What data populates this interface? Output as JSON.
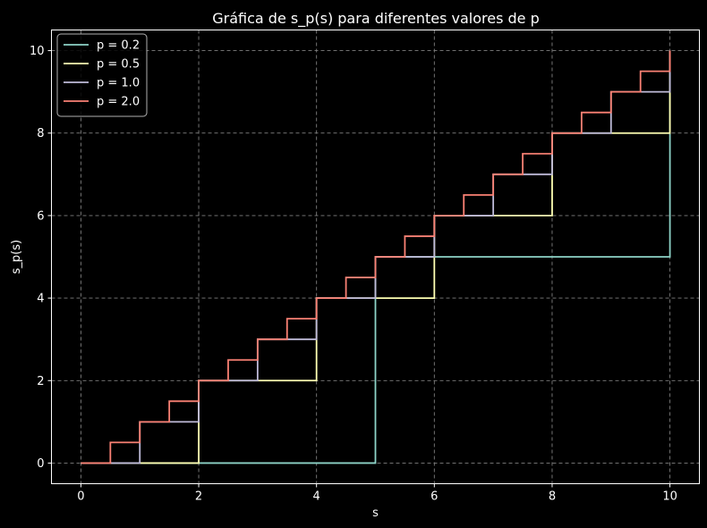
{
  "chart_data": {
    "type": "line",
    "title": "Gráfica de s_p(s) para diferentes valores de p",
    "xlabel": "s",
    "ylabel": "s_p(s)",
    "xlim": [
      -0.5,
      10.5
    ],
    "ylim": [
      -0.5,
      10.5
    ],
    "xticks": [
      0,
      2,
      4,
      6,
      8,
      10
    ],
    "yticks": [
      0,
      2,
      4,
      6,
      8,
      10
    ],
    "xtick_labels": [
      "0",
      "2",
      "4",
      "6",
      "8",
      "10"
    ],
    "ytick_labels": [
      "0",
      "2",
      "4",
      "6",
      "8",
      "10"
    ],
    "grid": true,
    "legend_position": "top-left",
    "background": "#000000",
    "series": [
      {
        "name": "p = 0.2",
        "step": 5,
        "x_range": [
          0,
          10
        ],
        "color": "#8dd3c7"
      },
      {
        "name": "p = 0.5",
        "step": 2,
        "x_range": [
          0,
          10
        ],
        "color": "#feffb3"
      },
      {
        "name": "p = 1.0",
        "step": 1,
        "x_range": [
          0,
          10
        ],
        "color": "#bfbbd9"
      },
      {
        "name": "p = 2.0",
        "step": 0.5,
        "x_range": [
          0,
          10
        ],
        "color": "#fa8174"
      }
    ]
  }
}
